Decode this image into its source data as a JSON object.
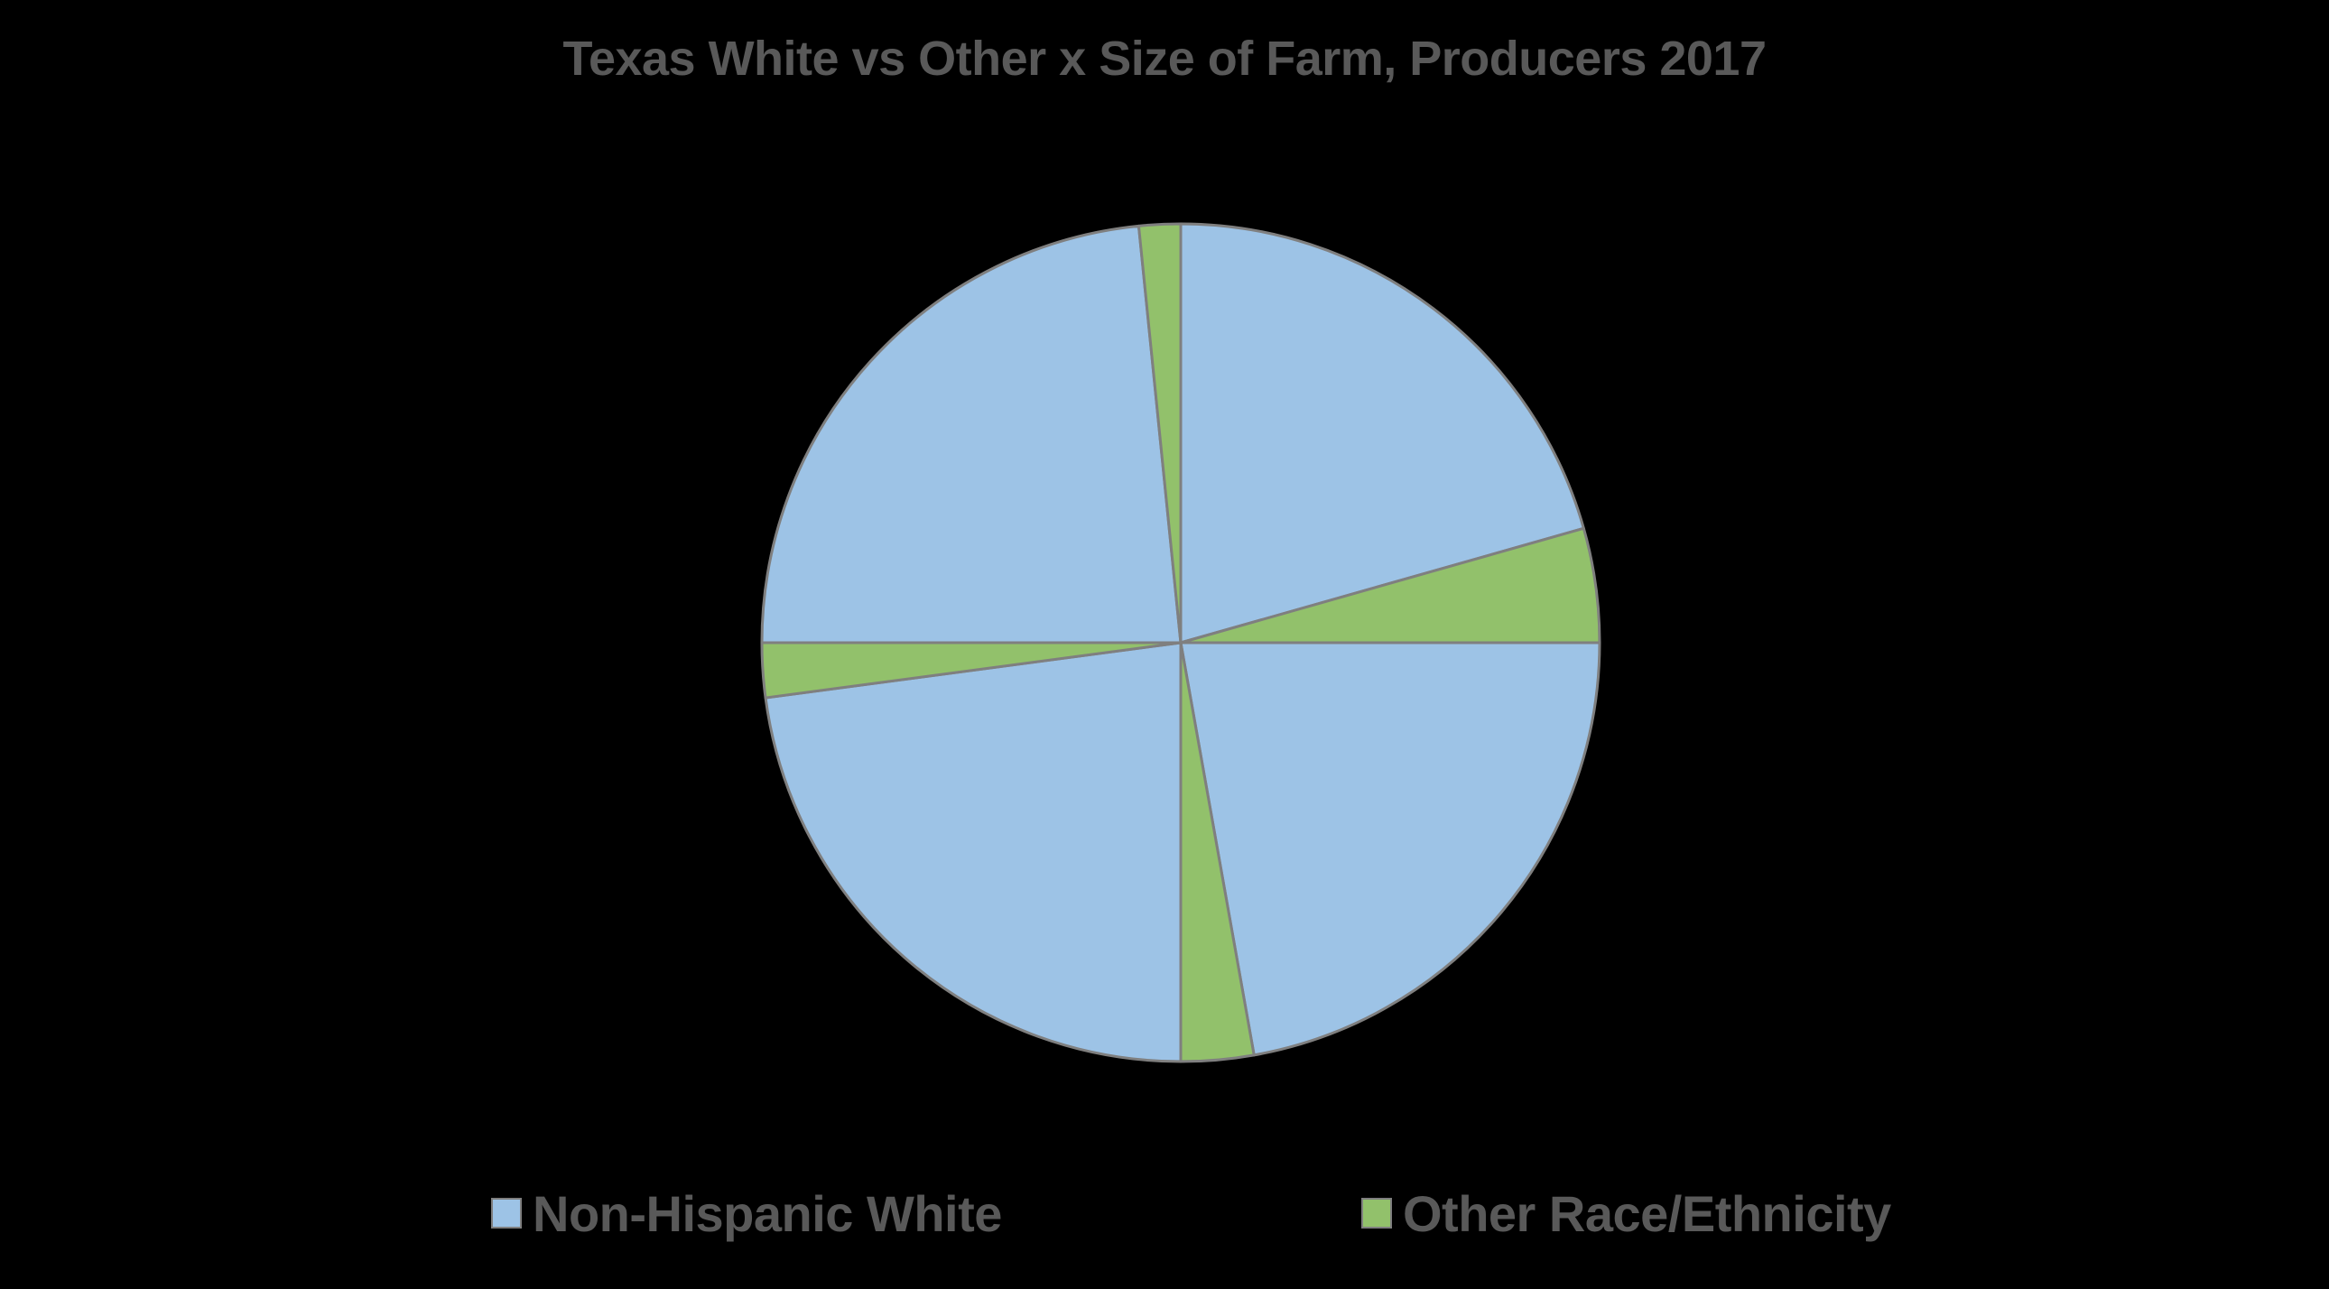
{
  "chart_data": {
    "type": "pie",
    "title": "Texas White vs Other x Size of Farm, Producers 2017",
    "legend": {
      "placement": "bottom",
      "entries": [
        {
          "name": "Non-Hispanic White",
          "color": "#9DC3E6"
        },
        {
          "name": "Other Race/Ethnicity",
          "color": "#92C16B"
        }
      ]
    },
    "slices": [
      {
        "series": "Non-Hispanic White",
        "value": 20.6,
        "color": "#9DC3E6"
      },
      {
        "series": "Other Race/Ethnicity",
        "value": 4.4,
        "color": "#92C16B"
      },
      {
        "series": "Non-Hispanic White",
        "value": 22.2,
        "color": "#9DC3E6"
      },
      {
        "series": "Other Race/Ethnicity",
        "value": 2.8,
        "color": "#92C16B"
      },
      {
        "series": "Non-Hispanic White",
        "value": 22.9,
        "color": "#9DC3E6"
      },
      {
        "series": "Other Race/Ethnicity",
        "value": 2.1,
        "color": "#92C16B"
      },
      {
        "series": "Non-Hispanic White",
        "value": 23.4,
        "color": "#9DC3E6"
      },
      {
        "series": "Other Race/Ethnicity",
        "value": 1.6,
        "color": "#92C16B"
      }
    ],
    "slice_border_color": "#7F7F7F",
    "start_angle_deg": 0,
    "direction": "clockwise"
  }
}
